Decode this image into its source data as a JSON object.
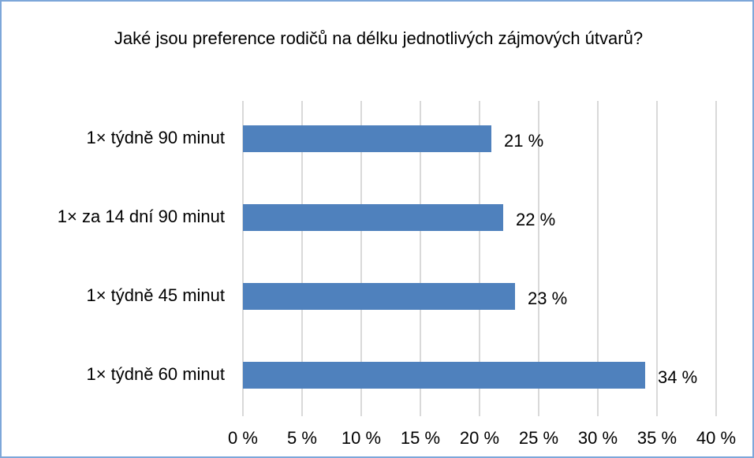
{
  "chart_data": {
    "type": "bar",
    "orientation": "horizontal",
    "title": "Jaké jsou preference rodičů  na délku jednotlivých zájmových útvarů?",
    "categories": [
      "1× týdně 90 minut",
      "1× za 14 dní 90 minut",
      "1× týdně 45 minut",
      "1× týdně 60 minut"
    ],
    "values": [
      21,
      22,
      23,
      34
    ],
    "value_labels": [
      "21 %",
      "22 %",
      "23 %",
      "34 %"
    ],
    "color": "#4f81bd",
    "xlim": [
      0,
      40
    ],
    "xticks": [
      {
        "value": 0,
        "label": "0 %"
      },
      {
        "value": 5,
        "label": "5 %"
      },
      {
        "value": 10,
        "label": "10 %"
      },
      {
        "value": 15,
        "label": "15 %"
      },
      {
        "value": 20,
        "label": "20 %"
      },
      {
        "value": 25,
        "label": "25 %"
      },
      {
        "value": 30,
        "label": "30 %"
      },
      {
        "value": 35,
        "label": "35 %"
      },
      {
        "value": 40,
        "label": "40 %"
      }
    ],
    "grid": true
  }
}
